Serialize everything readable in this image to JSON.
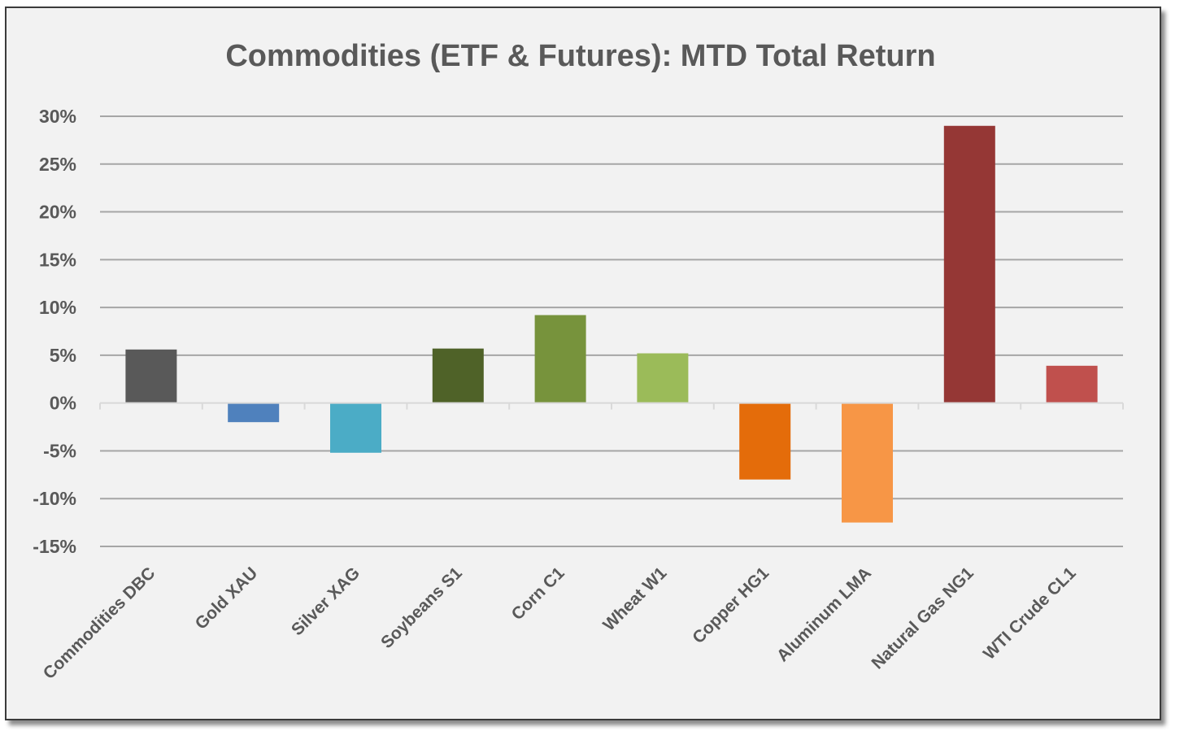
{
  "chart_data": {
    "type": "bar",
    "title": "Commodities (ETF & Futures): MTD Total Return",
    "xlabel": "",
    "ylabel": "",
    "ylim": [
      -15,
      30
    ],
    "y_ticks": [
      30,
      25,
      20,
      15,
      10,
      5,
      0,
      -5,
      -10,
      -15
    ],
    "y_tick_labels": [
      "30%",
      "25%",
      "20%",
      "15%",
      "10%",
      "5%",
      "0%",
      "-5%",
      "-10%",
      "-15%"
    ],
    "grid": true,
    "legend": "none",
    "categories": [
      "Commodities DBC",
      "Gold XAU",
      "Silver XAG",
      "Soybeans S1",
      "Corn C1",
      "Wheat W1",
      "Copper HG1",
      "Aluminum LMA",
      "Natural Gas NG1",
      "WTI Crude CL1"
    ],
    "values": [
      5.6,
      -2.0,
      -5.2,
      5.7,
      9.2,
      5.2,
      -8.0,
      -12.5,
      29.0,
      3.9
    ],
    "colors": [
      "#595959",
      "#4f81bd",
      "#4bacc6",
      "#4f6228",
      "#77933c",
      "#9bbb59",
      "#e46c0a",
      "#f79646",
      "#953735",
      "#c0504d"
    ]
  }
}
